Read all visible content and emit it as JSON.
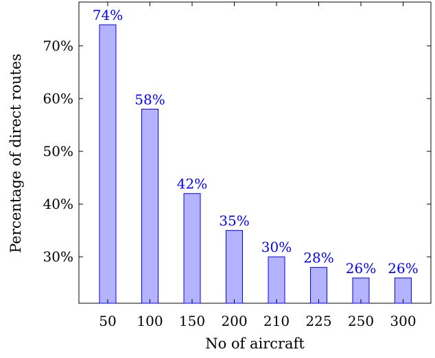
{
  "chart_data": {
    "type": "bar",
    "categories": [
      "50",
      "100",
      "150",
      "200",
      "210",
      "225",
      "250",
      "300"
    ],
    "values": [
      74,
      58,
      42,
      35,
      30,
      28,
      26,
      26
    ],
    "data_labels": [
      "74%",
      "58%",
      "42%",
      "35%",
      "30%",
      "28%",
      "26%",
      "26%"
    ],
    "xlabel": "No of aircraft",
    "ylabel": "Percentage of direct routes",
    "yticks": [
      30,
      40,
      50,
      60,
      70
    ],
    "ytick_labels": [
      "30%",
      "40%",
      "50%",
      "60%",
      "70%"
    ],
    "ylim": [
      21.2,
      78.3
    ],
    "grid": false,
    "colors": {
      "bar_fill": "#b3b3ff",
      "bar_stroke": "#0000ff",
      "data_label": "#0000ff",
      "axis": "#000000"
    }
  }
}
